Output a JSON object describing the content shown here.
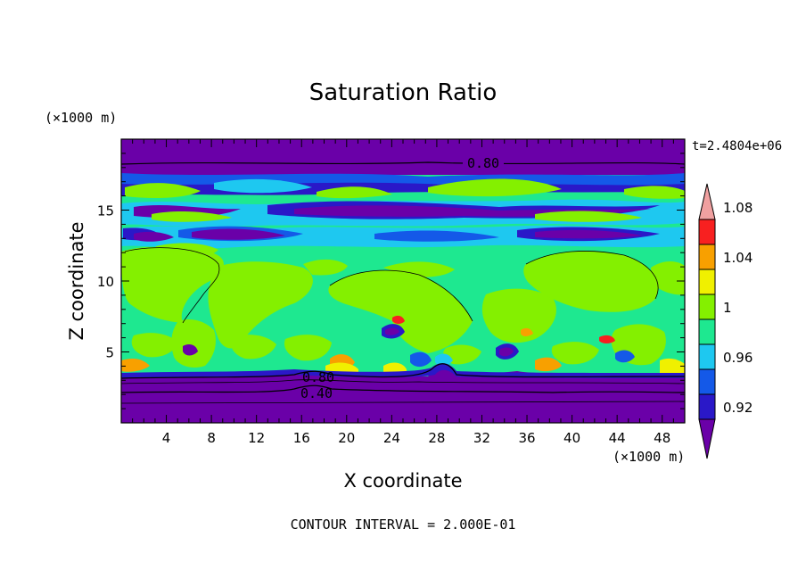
{
  "chart_data": {
    "type": "heatmap",
    "title": "Saturation Ratio",
    "xlabel": "X coordinate",
    "ylabel": "Z coordinate",
    "x_unit": "(×1000 m)",
    "y_unit": "(×1000 m)",
    "time_label": "t=2.4804e+06",
    "footer": "CONTOUR INTERVAL = 2.000E-01",
    "xlim": [
      0,
      50
    ],
    "ylim": [
      0,
      20
    ],
    "x_ticks": [
      4,
      8,
      12,
      16,
      20,
      24,
      28,
      32,
      36,
      40,
      44,
      48
    ],
    "y_ticks": [
      5,
      10,
      15
    ],
    "colorbar": {
      "levels": [
        0.92,
        0.94,
        0.96,
        0.98,
        1.0,
        1.02,
        1.04,
        1.06,
        1.08,
        1.1
      ],
      "labels": [
        "0.92",
        "0.96",
        "1",
        "1.04",
        "1.08"
      ],
      "colors": [
        "#6a00a8",
        "#2a18c8",
        "#1459e8",
        "#1ec8f0",
        "#1ee890",
        "#84f000",
        "#f0f000",
        "#f8a000",
        "#f82020",
        "#f0a0a0"
      ]
    },
    "contour_lines": [
      {
        "value": 0.8,
        "label": "0.80",
        "z": 18.3
      },
      {
        "value": 0.8,
        "label": "0.80",
        "z": 3.2
      },
      {
        "value": 0.4,
        "label": "0.40",
        "z": 2.2
      }
    ]
  }
}
